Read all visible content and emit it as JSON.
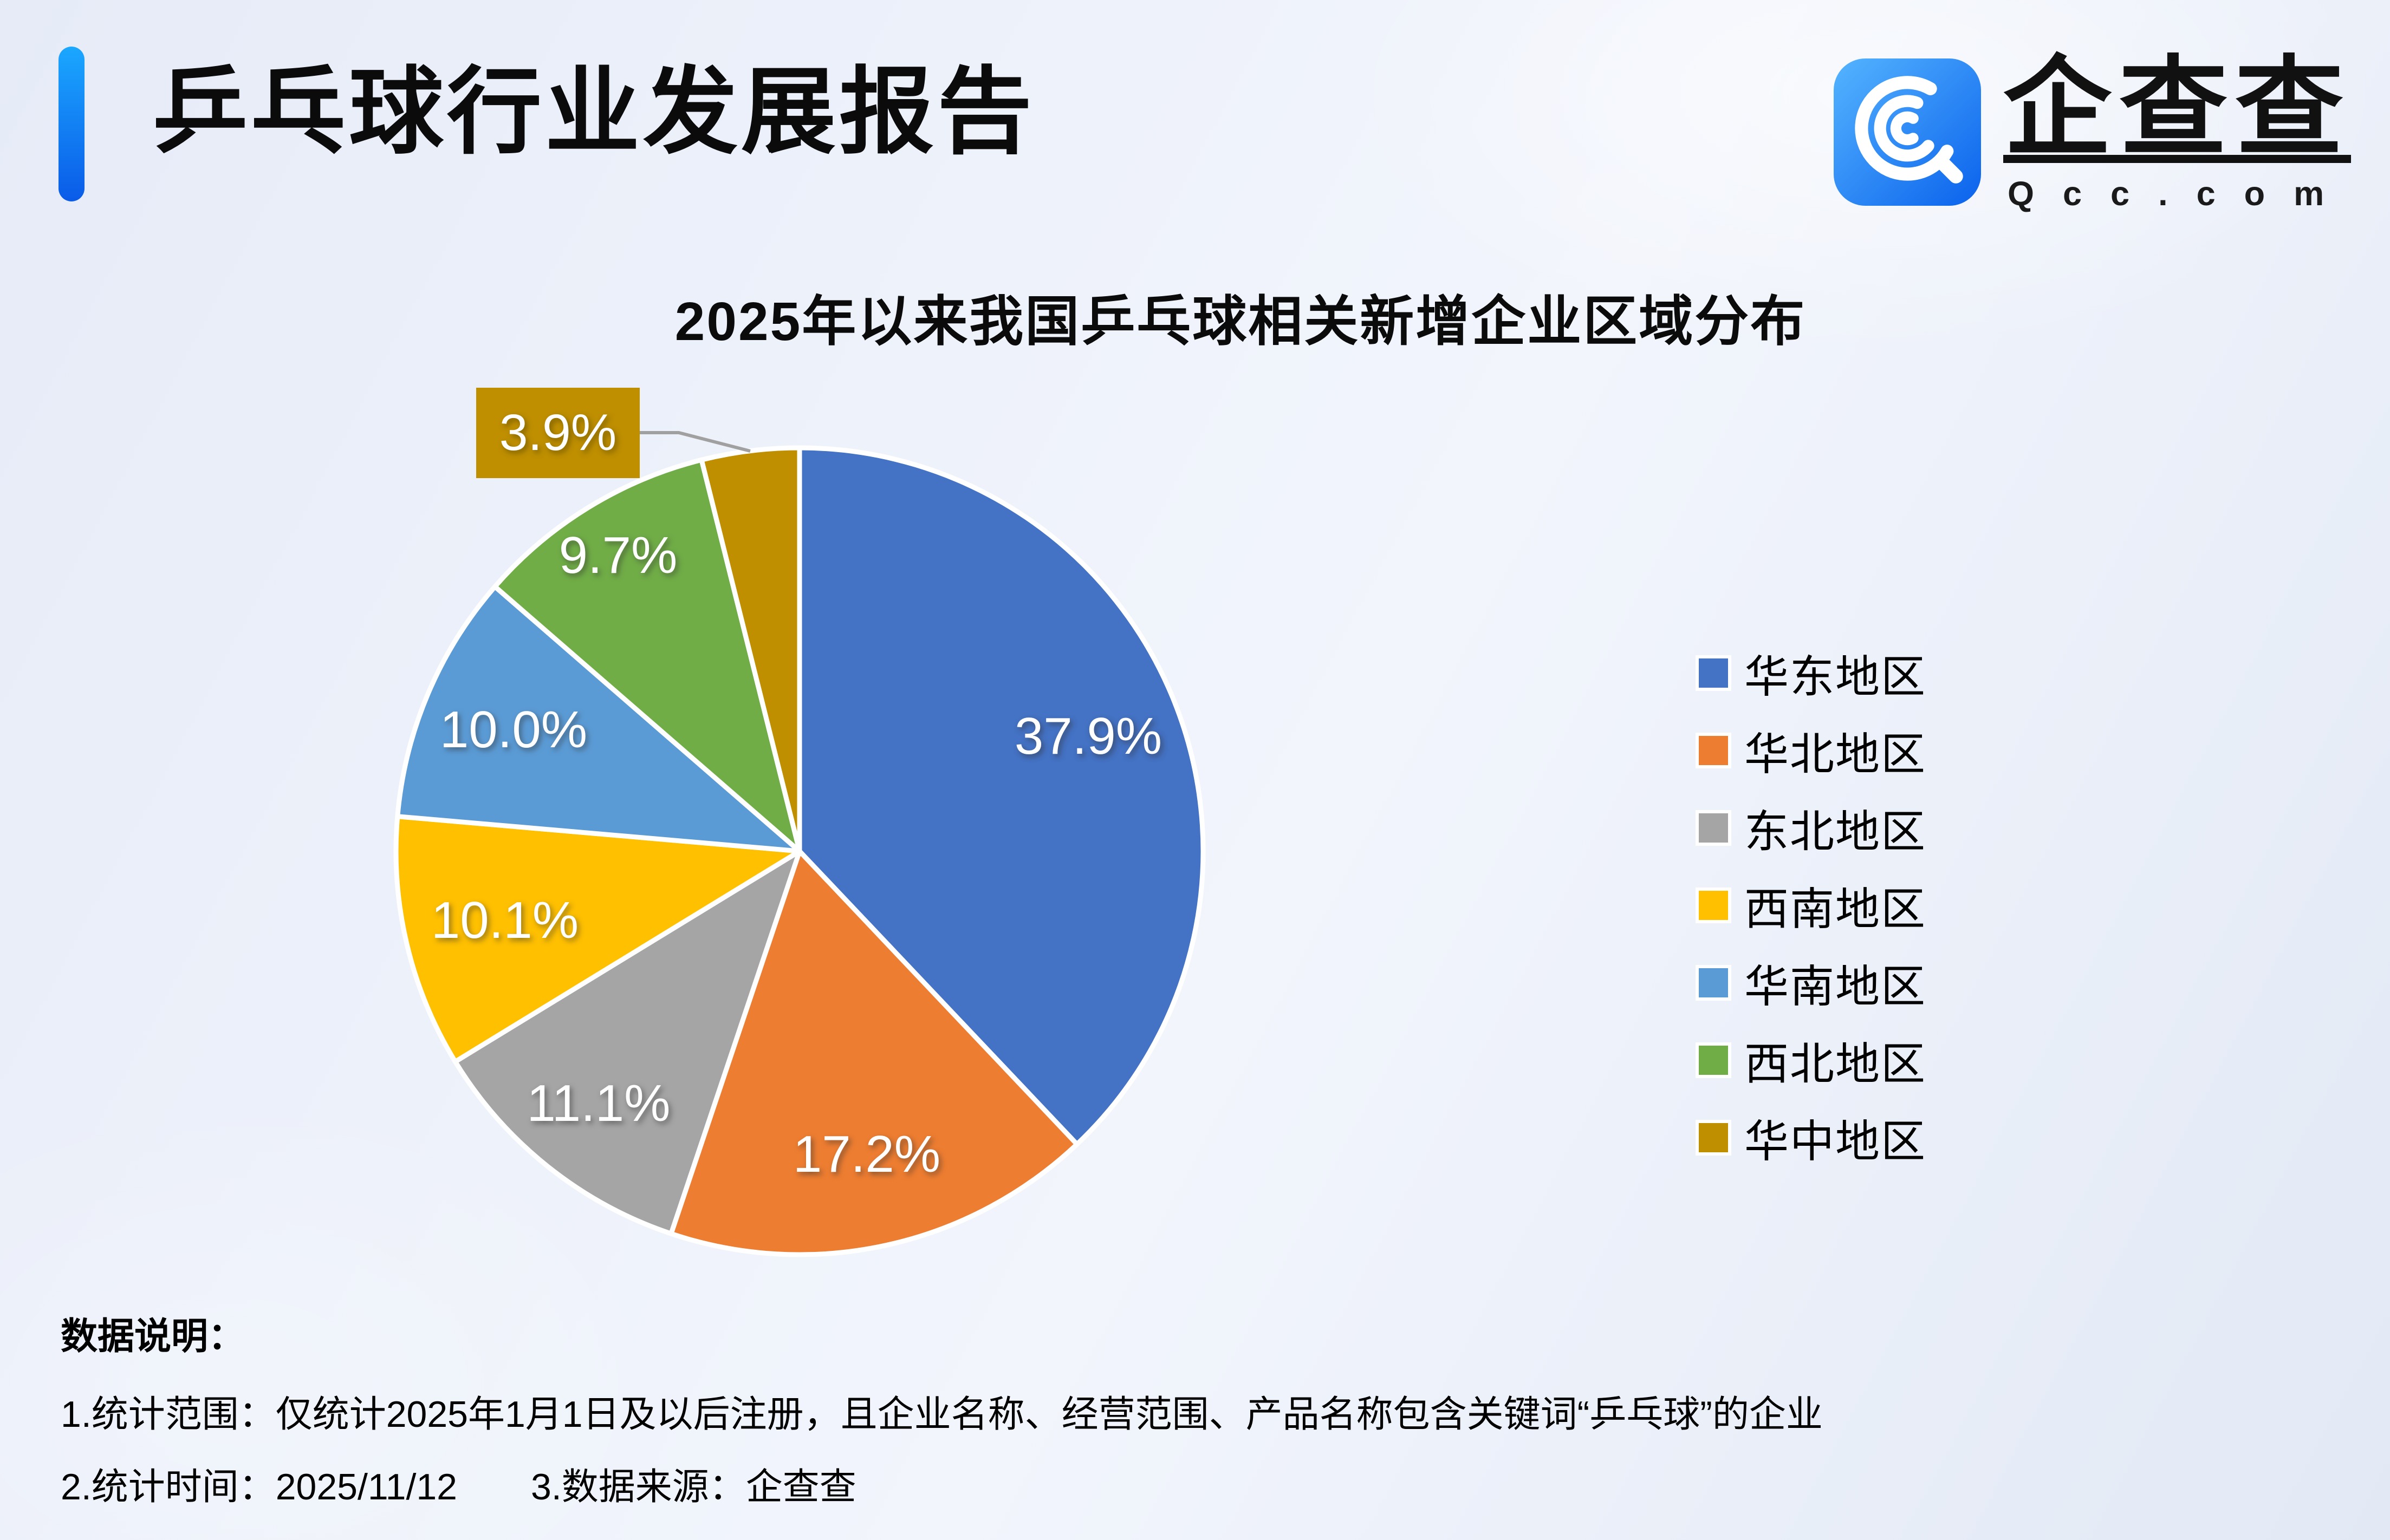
{
  "header": {
    "title": "乒乓球行业发展报告",
    "logo": {
      "name": "企查查",
      "domain": "Qcc.com",
      "icon": "qcc-logo-icon"
    }
  },
  "chart_data": {
    "type": "pie",
    "title": "2025年以来我国乒乓球相关新增企业区域分布",
    "unit": "%",
    "legend_position": "right",
    "start_angle_deg": 0,
    "direction": "clockwise",
    "series": [
      {
        "name": "华东地区",
        "value": 37.9,
        "label": "37.9%",
        "color": "#4472C4"
      },
      {
        "name": "华北地区",
        "value": 17.2,
        "label": "17.2%",
        "color": "#ED7D31"
      },
      {
        "name": "东北地区",
        "value": 11.1,
        "label": "11.1%",
        "color": "#A5A5A5"
      },
      {
        "name": "西南地区",
        "value": 10.1,
        "label": "10.1%",
        "color": "#FFC000"
      },
      {
        "name": "华南地区",
        "value": 10.0,
        "label": "10.0%",
        "color": "#5B9BD5"
      },
      {
        "name": "西北地区",
        "value": 9.7,
        "label": "9.7%",
        "color": "#70AD47"
      },
      {
        "name": "华中地区",
        "value": 3.9,
        "label": "3.9%",
        "color": "#BF8F00",
        "callout": true
      }
    ],
    "colors": {
      "slice_border": "#FFFFFF",
      "leader_line": "#A0A0A0",
      "callout_background": "#BF8F00",
      "label_text": "#FFFFFF"
    }
  },
  "footer": {
    "heading": "数据说明：",
    "note1": "1.统计范围：仅统计2025年1月1日及以后注册，且企业名称、经营范围、产品名称包含关键词“乒乓球”的企业",
    "note2": "2.统计时间：2025/11/12　　3.数据来源：企查查"
  }
}
